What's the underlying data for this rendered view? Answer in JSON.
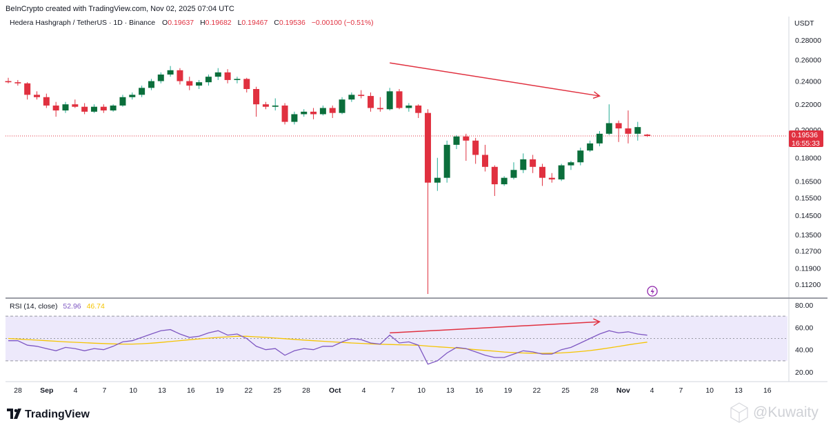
{
  "header": {
    "credit": "BeInCrypto created with TradingView.com, Nov 02, 2025 07:04 UTC"
  },
  "legend": {
    "symbol": "Hedera Hashgraph / TetherUS · 1D · Binance",
    "o_label": "O",
    "o_value": "0.19637",
    "h_label": "H",
    "h_value": "0.19682",
    "l_label": "L",
    "l_value": "0.19467",
    "c_label": "C",
    "c_value": "0.19536",
    "change": "−0.00100 (−0.51%)"
  },
  "price_axis": {
    "currency": "USDT",
    "ticks": [
      "0.28000",
      "0.26000",
      "0.24000",
      "0.22000",
      "0.20000",
      "0.18000",
      "0.16500",
      "0.15500",
      "0.14500",
      "0.13500",
      "0.12700",
      "0.11900",
      "0.11200"
    ],
    "last_price": "0.19536",
    "countdown": "16:55:33"
  },
  "rsi": {
    "label": "RSI (14, close)",
    "value": "52.96",
    "ma_value": "46.74",
    "ticks": [
      "80.00",
      "60.00",
      "40.00",
      "20.00"
    ]
  },
  "time_axis": {
    "ticks": [
      "28",
      "Sep",
      "4",
      "7",
      "10",
      "13",
      "16",
      "19",
      "22",
      "25",
      "28",
      "Oct",
      "4",
      "7",
      "10",
      "13",
      "16",
      "19",
      "22",
      "25",
      "28",
      "Nov",
      "4",
      "7",
      "10",
      "13",
      "16"
    ]
  },
  "footer": {
    "brand": "TradingView",
    "watermark": "@Kuwaity"
  },
  "colors": {
    "up": "#22ab94",
    "up_body": "#0b6e3b",
    "down": "#e0303f",
    "rsi_line": "#7e57c2",
    "rsi_ma": "#f5c400",
    "rsi_band": "#ede9fb",
    "arrow": "#e0303f"
  },
  "chart_data": [
    {
      "type": "candlestick",
      "title": "Hedera Hashgraph / TetherUS · 1D · Binance",
      "y_scale": "log",
      "ylim": [
        0.108,
        0.305
      ],
      "x": [
        "Aug 27",
        "Aug 28",
        "Aug 29",
        "Aug 30",
        "Aug 31",
        "Sep 1",
        "Sep 2",
        "Sep 3",
        "Sep 4",
        "Sep 5",
        "Sep 6",
        "Sep 7",
        "Sep 8",
        "Sep 9",
        "Sep 10",
        "Sep 11",
        "Sep 12",
        "Sep 13",
        "Sep 14",
        "Sep 15",
        "Sep 16",
        "Sep 17",
        "Sep 18",
        "Sep 19",
        "Sep 20",
        "Sep 21",
        "Sep 22",
        "Sep 23",
        "Sep 24",
        "Sep 25",
        "Sep 26",
        "Sep 27",
        "Sep 28",
        "Sep 29",
        "Sep 30",
        "Oct 1",
        "Oct 2",
        "Oct 3",
        "Oct 4",
        "Oct 5",
        "Oct 6",
        "Oct 7",
        "Oct 8",
        "Oct 9",
        "Oct 10",
        "Oct 11",
        "Oct 12",
        "Oct 13",
        "Oct 14",
        "Oct 15",
        "Oct 16",
        "Oct 17",
        "Oct 18",
        "Oct 19",
        "Oct 20",
        "Oct 21",
        "Oct 22",
        "Oct 23",
        "Oct 24",
        "Oct 25",
        "Oct 26",
        "Oct 27",
        "Oct 28",
        "Oct 29",
        "Oct 30",
        "Oct 31",
        "Nov 1",
        "Nov 2"
      ],
      "candles": [
        {
          "o": 0.24,
          "h": 0.243,
          "l": 0.238,
          "c": 0.239
        },
        {
          "o": 0.239,
          "h": 0.241,
          "l": 0.236,
          "c": 0.238
        },
        {
          "o": 0.238,
          "h": 0.239,
          "l": 0.224,
          "c": 0.228
        },
        {
          "o": 0.228,
          "h": 0.231,
          "l": 0.224,
          "c": 0.226
        },
        {
          "o": 0.226,
          "h": 0.229,
          "l": 0.217,
          "c": 0.219
        },
        {
          "o": 0.219,
          "h": 0.222,
          "l": 0.21,
          "c": 0.215
        },
        {
          "o": 0.215,
          "h": 0.222,
          "l": 0.213,
          "c": 0.22
        },
        {
          "o": 0.22,
          "h": 0.224,
          "l": 0.217,
          "c": 0.218
        },
        {
          "o": 0.218,
          "h": 0.221,
          "l": 0.212,
          "c": 0.214
        },
        {
          "o": 0.214,
          "h": 0.22,
          "l": 0.213,
          "c": 0.218
        },
        {
          "o": 0.218,
          "h": 0.22,
          "l": 0.213,
          "c": 0.215
        },
        {
          "o": 0.215,
          "h": 0.22,
          "l": 0.214,
          "c": 0.219
        },
        {
          "o": 0.219,
          "h": 0.228,
          "l": 0.218,
          "c": 0.226
        },
        {
          "o": 0.226,
          "h": 0.23,
          "l": 0.224,
          "c": 0.228
        },
        {
          "o": 0.228,
          "h": 0.236,
          "l": 0.226,
          "c": 0.234
        },
        {
          "o": 0.234,
          "h": 0.242,
          "l": 0.232,
          "c": 0.24
        },
        {
          "o": 0.24,
          "h": 0.248,
          "l": 0.238,
          "c": 0.246
        },
        {
          "o": 0.246,
          "h": 0.254,
          "l": 0.244,
          "c": 0.25
        },
        {
          "o": 0.25,
          "h": 0.252,
          "l": 0.237,
          "c": 0.24
        },
        {
          "o": 0.24,
          "h": 0.244,
          "l": 0.232,
          "c": 0.236
        },
        {
          "o": 0.236,
          "h": 0.241,
          "l": 0.233,
          "c": 0.239
        },
        {
          "o": 0.239,
          "h": 0.246,
          "l": 0.236,
          "c": 0.244
        },
        {
          "o": 0.244,
          "h": 0.252,
          "l": 0.241,
          "c": 0.248
        },
        {
          "o": 0.248,
          "h": 0.251,
          "l": 0.238,
          "c": 0.241
        },
        {
          "o": 0.241,
          "h": 0.244,
          "l": 0.238,
          "c": 0.242
        },
        {
          "o": 0.242,
          "h": 0.243,
          "l": 0.23,
          "c": 0.233
        },
        {
          "o": 0.233,
          "h": 0.235,
          "l": 0.21,
          "c": 0.22
        },
        {
          "o": 0.22,
          "h": 0.222,
          "l": 0.216,
          "c": 0.218
        },
        {
          "o": 0.218,
          "h": 0.225,
          "l": 0.215,
          "c": 0.219
        },
        {
          "o": 0.219,
          "h": 0.221,
          "l": 0.204,
          "c": 0.206
        },
        {
          "o": 0.206,
          "h": 0.214,
          "l": 0.204,
          "c": 0.212
        },
        {
          "o": 0.212,
          "h": 0.216,
          "l": 0.21,
          "c": 0.214
        },
        {
          "o": 0.214,
          "h": 0.217,
          "l": 0.208,
          "c": 0.212
        },
        {
          "o": 0.212,
          "h": 0.219,
          "l": 0.211,
          "c": 0.217
        },
        {
          "o": 0.217,
          "h": 0.219,
          "l": 0.209,
          "c": 0.213
        },
        {
          "o": 0.213,
          "h": 0.226,
          "l": 0.212,
          "c": 0.224
        },
        {
          "o": 0.224,
          "h": 0.23,
          "l": 0.222,
          "c": 0.228
        },
        {
          "o": 0.228,
          "h": 0.232,
          "l": 0.225,
          "c": 0.227
        },
        {
          "o": 0.227,
          "h": 0.23,
          "l": 0.214,
          "c": 0.217
        },
        {
          "o": 0.217,
          "h": 0.226,
          "l": 0.214,
          "c": 0.216
        },
        {
          "o": 0.216,
          "h": 0.234,
          "l": 0.215,
          "c": 0.231
        },
        {
          "o": 0.231,
          "h": 0.233,
          "l": 0.216,
          "c": 0.217
        },
        {
          "o": 0.217,
          "h": 0.221,
          "l": 0.214,
          "c": 0.219
        },
        {
          "o": 0.219,
          "h": 0.22,
          "l": 0.209,
          "c": 0.213
        },
        {
          "o": 0.213,
          "h": 0.216,
          "l": 0.108,
          "c": 0.164
        },
        {
          "o": 0.164,
          "h": 0.18,
          "l": 0.159,
          "c": 0.167
        },
        {
          "o": 0.167,
          "h": 0.192,
          "l": 0.164,
          "c": 0.189
        },
        {
          "o": 0.189,
          "h": 0.196,
          "l": 0.186,
          "c": 0.195
        },
        {
          "o": 0.195,
          "h": 0.197,
          "l": 0.178,
          "c": 0.192
        },
        {
          "o": 0.192,
          "h": 0.194,
          "l": 0.176,
          "c": 0.182
        },
        {
          "o": 0.182,
          "h": 0.189,
          "l": 0.171,
          "c": 0.174
        },
        {
          "o": 0.174,
          "h": 0.175,
          "l": 0.156,
          "c": 0.163
        },
        {
          "o": 0.163,
          "h": 0.168,
          "l": 0.162,
          "c": 0.167
        },
        {
          "o": 0.167,
          "h": 0.177,
          "l": 0.166,
          "c": 0.172
        },
        {
          "o": 0.172,
          "h": 0.183,
          "l": 0.17,
          "c": 0.179
        },
        {
          "o": 0.179,
          "h": 0.182,
          "l": 0.17,
          "c": 0.174
        },
        {
          "o": 0.174,
          "h": 0.176,
          "l": 0.162,
          "c": 0.167
        },
        {
          "o": 0.167,
          "h": 0.17,
          "l": 0.164,
          "c": 0.166
        },
        {
          "o": 0.166,
          "h": 0.176,
          "l": 0.165,
          "c": 0.175
        },
        {
          "o": 0.175,
          "h": 0.178,
          "l": 0.172,
          "c": 0.177
        },
        {
          "o": 0.177,
          "h": 0.187,
          "l": 0.175,
          "c": 0.185
        },
        {
          "o": 0.185,
          "h": 0.192,
          "l": 0.184,
          "c": 0.19
        },
        {
          "o": 0.19,
          "h": 0.199,
          "l": 0.188,
          "c": 0.197
        },
        {
          "o": 0.197,
          "h": 0.22,
          "l": 0.196,
          "c": 0.205
        },
        {
          "o": 0.205,
          "h": 0.207,
          "l": 0.191,
          "c": 0.201
        },
        {
          "o": 0.201,
          "h": 0.215,
          "l": 0.19,
          "c": 0.197
        },
        {
          "o": 0.197,
          "h": 0.206,
          "l": 0.192,
          "c": 0.202
        },
        {
          "o": 0.19637,
          "h": 0.19682,
          "l": 0.19467,
          "c": 0.19536
        }
      ],
      "last_price": 0.19536,
      "annotations": [
        {
          "type": "trend-arrow",
          "from": {
            "x": "Oct 6",
            "y": 0.257
          },
          "to": {
            "x": "Oct 28",
            "y": 0.227
          }
        }
      ]
    },
    {
      "type": "line",
      "title": "RSI (14, close)",
      "ylim": [
        10,
        85
      ],
      "bands": [
        30,
        50,
        70
      ],
      "x": [
        "Aug 27",
        "Aug 28",
        "Aug 29",
        "Aug 30",
        "Aug 31",
        "Sep 1",
        "Sep 2",
        "Sep 3",
        "Sep 4",
        "Sep 5",
        "Sep 6",
        "Sep 7",
        "Sep 8",
        "Sep 9",
        "Sep 10",
        "Sep 11",
        "Sep 12",
        "Sep 13",
        "Sep 14",
        "Sep 15",
        "Sep 16",
        "Sep 17",
        "Sep 18",
        "Sep 19",
        "Sep 20",
        "Sep 21",
        "Sep 22",
        "Sep 23",
        "Sep 24",
        "Sep 25",
        "Sep 26",
        "Sep 27",
        "Sep 28",
        "Sep 29",
        "Sep 30",
        "Oct 1",
        "Oct 2",
        "Oct 3",
        "Oct 4",
        "Oct 5",
        "Oct 6",
        "Oct 7",
        "Oct 8",
        "Oct 9",
        "Oct 10",
        "Oct 11",
        "Oct 12",
        "Oct 13",
        "Oct 14",
        "Oct 15",
        "Oct 16",
        "Oct 17",
        "Oct 18",
        "Oct 19",
        "Oct 20",
        "Oct 21",
        "Oct 22",
        "Oct 23",
        "Oct 24",
        "Oct 25",
        "Oct 26",
        "Oct 27",
        "Oct 28",
        "Oct 29",
        "Oct 30",
        "Oct 31",
        "Nov 1",
        "Nov 2"
      ],
      "series": [
        {
          "name": "RSI (14, close)",
          "values": [
            48,
            48,
            44,
            43,
            41,
            39,
            42,
            41,
            39,
            41,
            40,
            43,
            47,
            48,
            51,
            54,
            57,
            58,
            54,
            51,
            52,
            55,
            57,
            53,
            54,
            50,
            43,
            40,
            41,
            35,
            39,
            41,
            40,
            43,
            43,
            47,
            50,
            49,
            46,
            45,
            53,
            46,
            47,
            44,
            27,
            30,
            37,
            42,
            41,
            38,
            35,
            33,
            33,
            36,
            39,
            38,
            36,
            36,
            40,
            42,
            46,
            50,
            54,
            57,
            55,
            56,
            54,
            52.96
          ]
        },
        {
          "name": "MA",
          "values": [
            50,
            49.5,
            49,
            48.5,
            48,
            47.5,
            47,
            46.6,
            46.2,
            45.8,
            45.5,
            45.2,
            45,
            45,
            45.3,
            45.8,
            46.5,
            47.3,
            48.1,
            48.9,
            49.6,
            50.3,
            51,
            51.5,
            52,
            52,
            51.5,
            51,
            50.4,
            49.8,
            49.2,
            48.6,
            48,
            47.5,
            47,
            46.5,
            46,
            45.6,
            45.2,
            44.8,
            44.6,
            44.4,
            44.2,
            43.9,
            43.2,
            42.6,
            42,
            41.4,
            40.7,
            40,
            39.3,
            38.6,
            37.9,
            37.4,
            37,
            36.8,
            36.7,
            36.8,
            37.1,
            37.6,
            38.3,
            39.2,
            40.3,
            41.6,
            42.9,
            44.3,
            45.6,
            46.74
          ]
        }
      ],
      "annotations": [
        {
          "type": "trend-arrow",
          "from": {
            "x": "Oct 6",
            "y": 55
          },
          "to": {
            "x": "Oct 28",
            "y": 65
          }
        }
      ]
    }
  ]
}
